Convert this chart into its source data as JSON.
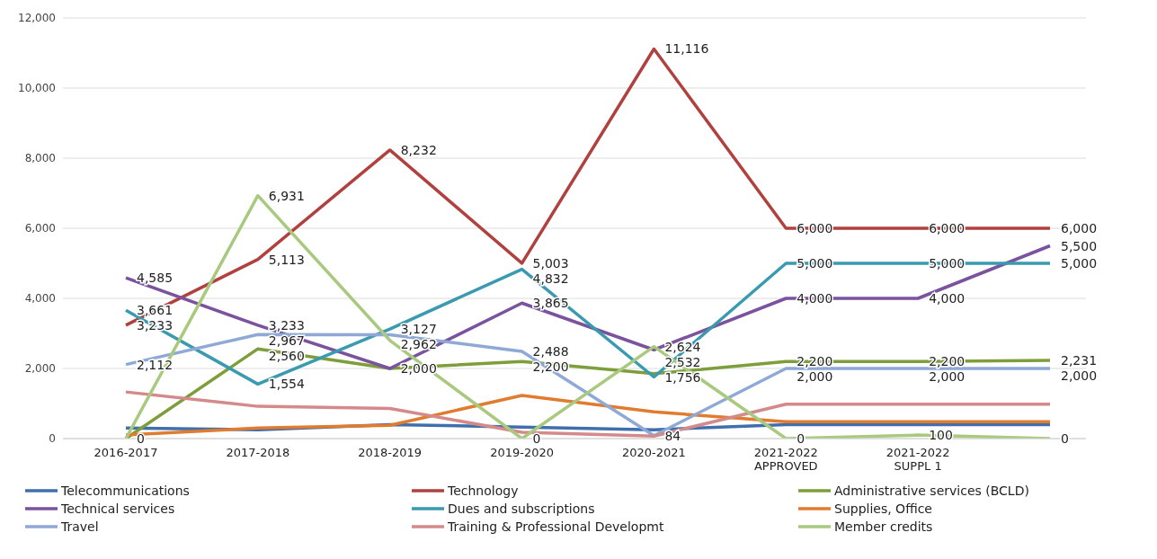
{
  "chart_data": {
    "type": "line",
    "categories": [
      "2016-2017",
      "2017-2018",
      "2018-2019",
      "2019-2020",
      "2020-2021",
      "2021-2022 APPROVED",
      "2021-2022 SUPPL 1",
      null
    ],
    "ylim": [
      0,
      12000
    ],
    "yticks": [
      {
        "value": 0,
        "label": "0"
      },
      {
        "value": 2000,
        "label": "2,000"
      },
      {
        "value": 4000,
        "label": "4,000"
      },
      {
        "value": 6000,
        "label": "6,000"
      },
      {
        "value": 8000,
        "label": "8,000"
      },
      {
        "value": 10000,
        "label": "10,000"
      },
      {
        "value": 12000,
        "label": "12,000"
      }
    ],
    "grid": "y",
    "legend": "bottom",
    "marker": "none",
    "line_style": "solid",
    "series": [
      {
        "name": "Telecommunications",
        "color": "#3f6fad",
        "values": [
          300,
          250,
          400,
          330,
          250,
          400,
          400,
          400
        ]
      },
      {
        "name": "Technology",
        "color": "#b0413e",
        "values": [
          3233,
          5113,
          8232,
          5003,
          11116,
          6000,
          6000,
          6000
        ],
        "value_labels": [
          "3,233",
          "5,113",
          "8,232",
          "5,003",
          "11,116",
          "6,000",
          "6,000",
          "6,000"
        ]
      },
      {
        "name": "Administrative services (BCLD)",
        "color": "#7d9e3a",
        "values": [
          0,
          2560,
          2000,
          2200,
          1850,
          2200,
          2200,
          2231
        ],
        "value_labels": [
          null,
          "2,560",
          null,
          "2,200",
          null,
          "2,200",
          "2,200",
          "2,231"
        ]
      },
      {
        "name": "Technical services",
        "color": "#7a529e",
        "values": [
          4585,
          3233,
          2000,
          3865,
          2532,
          4000,
          4000,
          5500
        ],
        "value_labels": [
          "4,585",
          "3,233",
          "2,000",
          "3,865",
          "2,532",
          "4,000",
          "4,000",
          "5,500"
        ]
      },
      {
        "name": "Dues and subscriptions",
        "color": "#3a9ab0",
        "values": [
          3661,
          1554,
          3127,
          4832,
          1756,
          5000,
          5000,
          5000
        ],
        "value_labels": [
          "3,661",
          "1,554",
          "3,127",
          "4,832",
          "1,756",
          "5,000",
          "5,000",
          "5,000"
        ]
      },
      {
        "name": "Supplies, Office",
        "color": "#e07b2f",
        "values": [
          100,
          300,
          380,
          1230,
          760,
          480,
          480,
          480
        ]
      },
      {
        "name": "Travel",
        "color": "#8fa9d6",
        "values": [
          2112,
          2967,
          2962,
          2488,
          84,
          2000,
          2000,
          2000
        ],
        "value_labels": [
          "2,112",
          "2,967",
          "2,962",
          "2,488",
          "84",
          "2,000",
          "2,000",
          "2,000"
        ]
      },
      {
        "name": "Training & Professional Developmt",
        "color": "#d48a8a",
        "values": [
          1330,
          920,
          860,
          180,
          70,
          980,
          980,
          980
        ]
      },
      {
        "name": "Member credits",
        "color": "#a9c97f",
        "values": [
          0,
          6931,
          2800,
          0,
          2624,
          0,
          100,
          0
        ],
        "value_labels": [
          "0",
          "6,931",
          null,
          "0",
          "2,624",
          "0",
          "100",
          "0"
        ]
      }
    ]
  }
}
